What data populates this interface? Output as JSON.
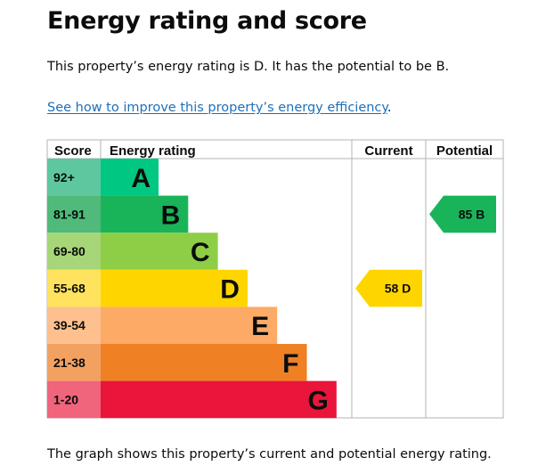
{
  "page": {
    "title": "Energy rating and score",
    "summary": "This property’s energy rating is D. It has the potential to be B.",
    "link_text": "See how to improve this property’s energy efficiency",
    "link_suffix": ".",
    "footer": "The graph shows this property’s current and potential energy rating."
  },
  "chart_data": {
    "type": "bar",
    "headers": {
      "score": "Score",
      "rating": "Energy rating",
      "current": "Current",
      "potential": "Potential"
    },
    "bands": [
      {
        "score_range": "92+",
        "letter": "A",
        "color": "#00c781",
        "score_color": "#5ec7a0"
      },
      {
        "score_range": "81-91",
        "letter": "B",
        "color": "#19b459",
        "score_color": "#4fba7a"
      },
      {
        "score_range": "69-80",
        "letter": "C",
        "color": "#8dce46",
        "score_color": "#a6d677"
      },
      {
        "score_range": "55-68",
        "letter": "D",
        "color": "#ffd500",
        "score_color": "#ffe25e"
      },
      {
        "score_range": "39-54",
        "letter": "E",
        "color": "#fcaa65",
        "score_color": "#fdc08e"
      },
      {
        "score_range": "21-38",
        "letter": "F",
        "color": "#ef8023",
        "score_color": "#f3a161"
      },
      {
        "score_range": "1-20",
        "letter": "G",
        "color": "#e9153b",
        "score_color": "#f0647c"
      }
    ],
    "current": {
      "score": 58,
      "letter": "D",
      "label": "58 D",
      "color": "#ffd500"
    },
    "potential": {
      "score": 85,
      "letter": "B",
      "label": "85 B",
      "color": "#19b459"
    }
  }
}
